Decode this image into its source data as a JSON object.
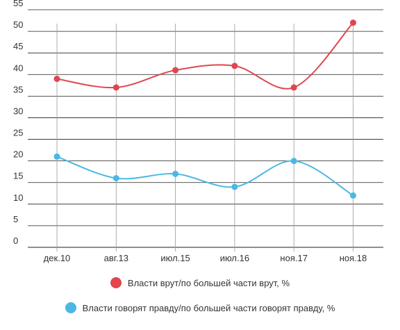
{
  "chart_data": {
    "type": "line",
    "categories": [
      "дек.10",
      "авг.13",
      "июл.15",
      "июл.16",
      "ноя.17",
      "ноя.18"
    ],
    "ylim": [
      0,
      55
    ],
    "yticks": [
      0,
      5,
      10,
      15,
      20,
      25,
      30,
      35,
      40,
      45,
      50,
      55
    ],
    "grid": true,
    "legend_position": "bottom",
    "series": [
      {
        "name": "Власти врут/по большей части врут, %",
        "color": "#e0464f",
        "values": [
          39,
          37,
          41,
          42,
          37,
          52
        ]
      },
      {
        "name": "Власти говорят правду/по большей части говорят правду, %",
        "color": "#4bb8e3",
        "values": [
          21,
          16,
          17,
          14,
          20,
          12
        ]
      }
    ]
  }
}
